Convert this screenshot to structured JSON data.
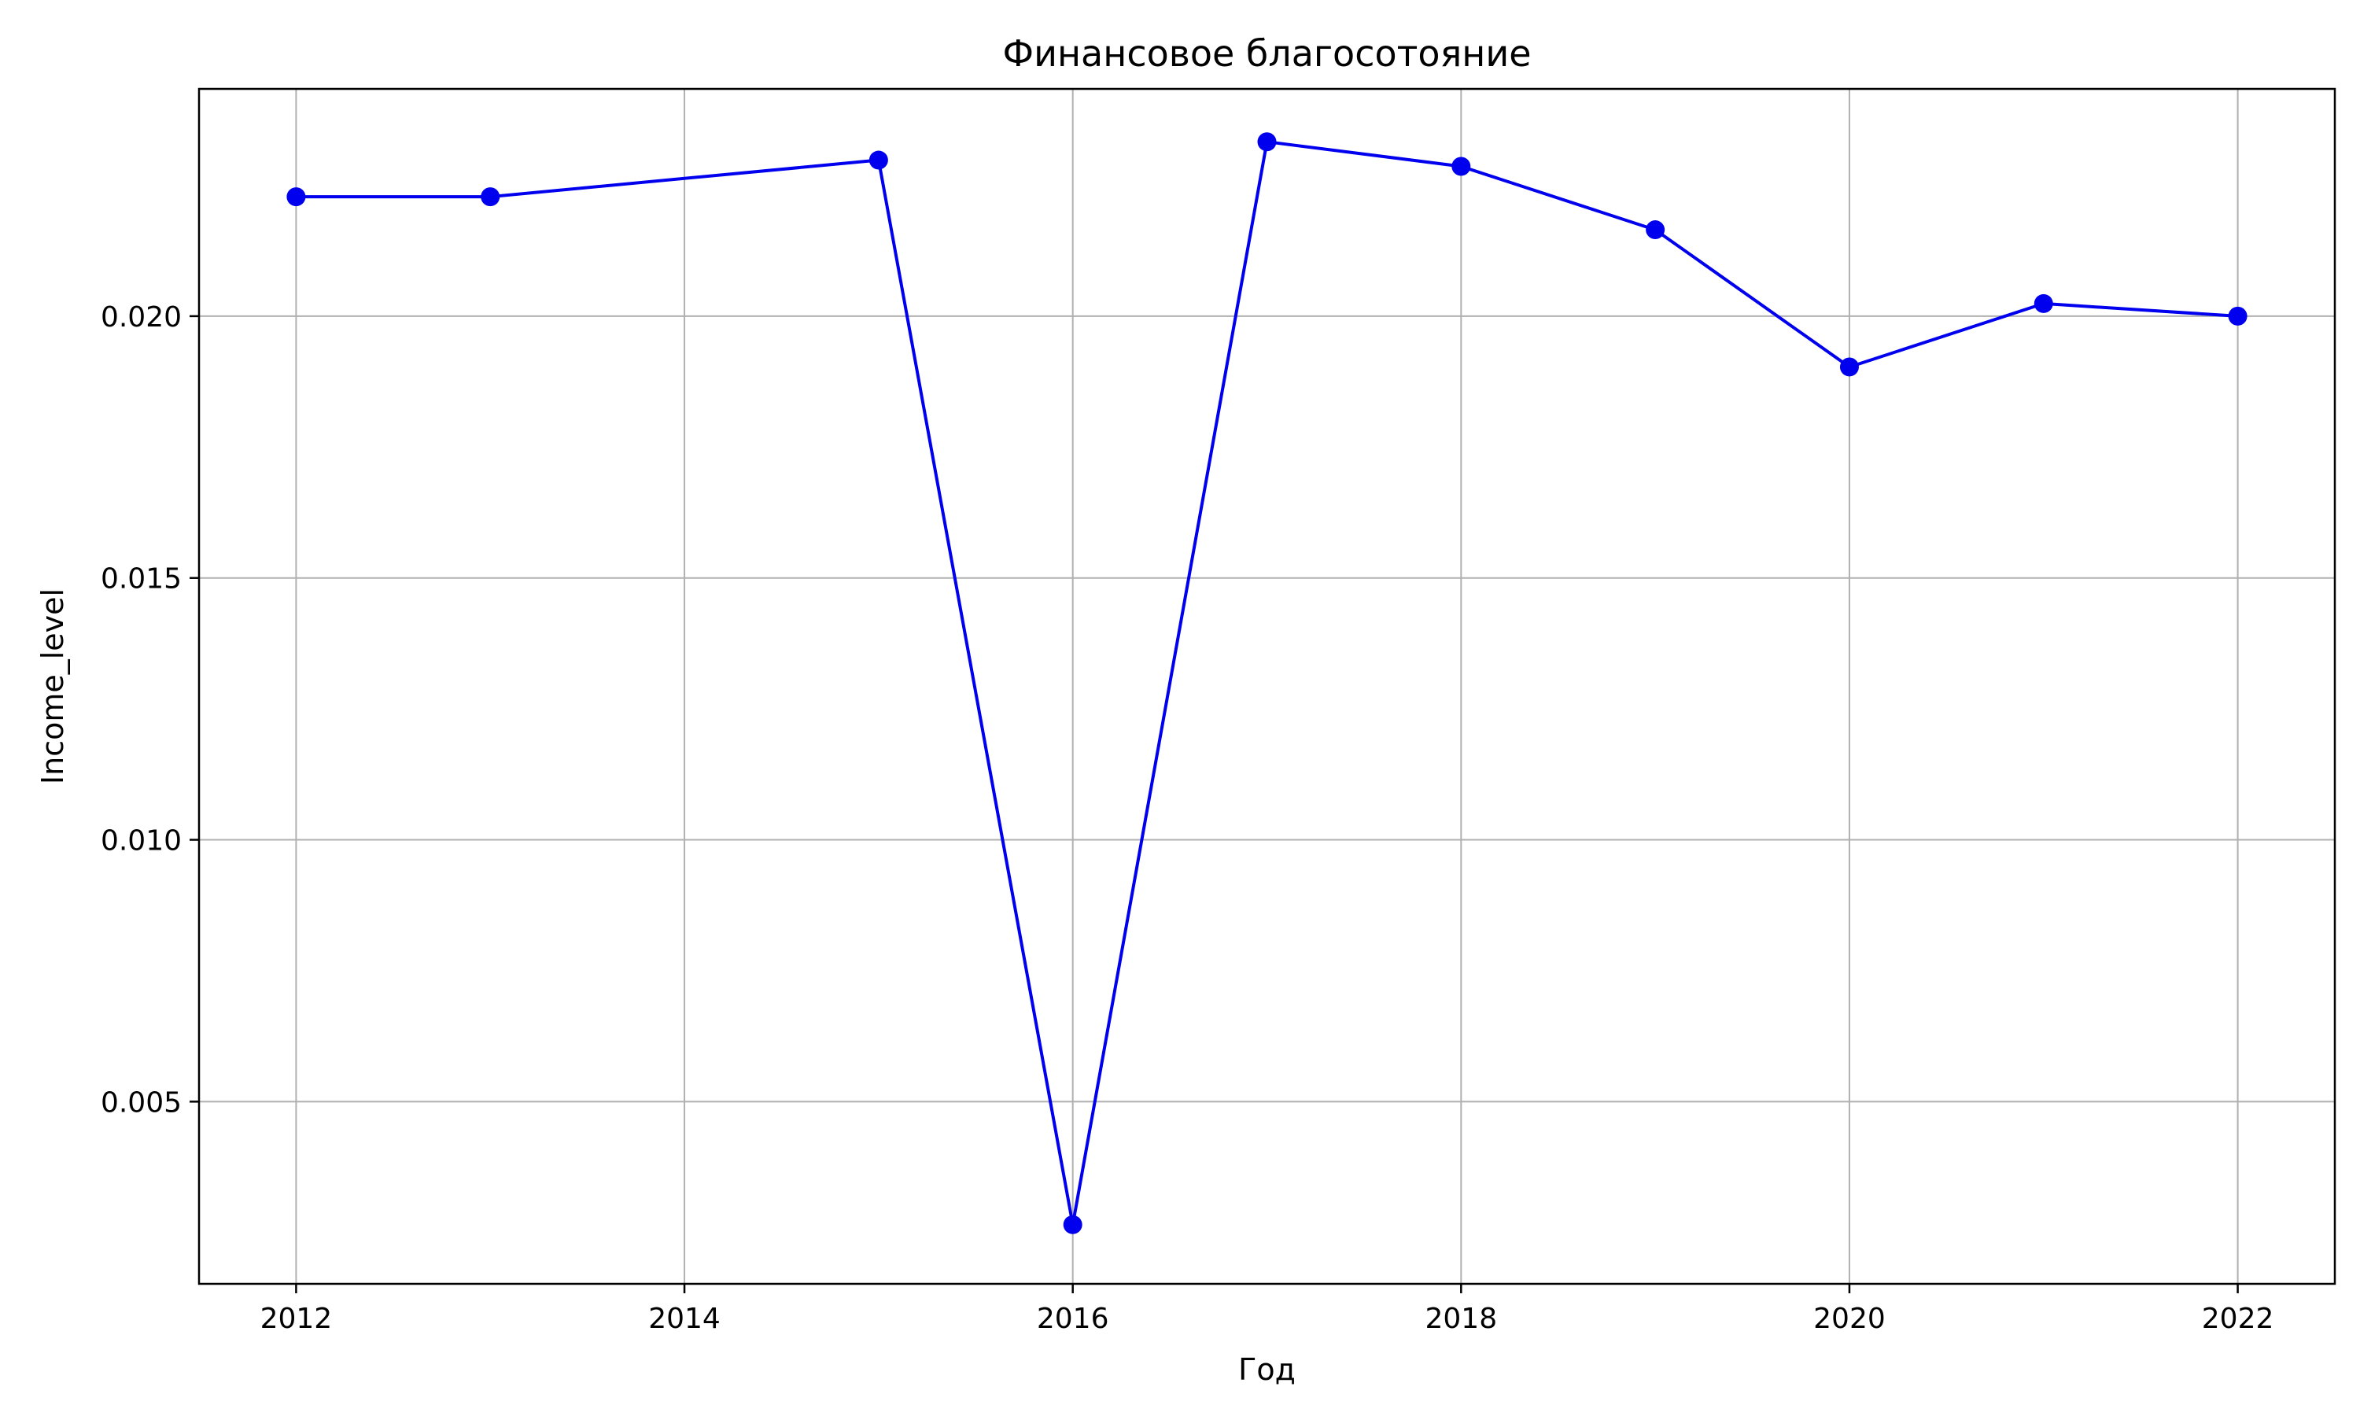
{
  "chart_data": {
    "type": "line",
    "title": "Финансовое благосотояние",
    "xlabel": "Год",
    "ylabel": "Income_level",
    "x": [
      2012,
      2013,
      2015,
      2016,
      2017,
      2018,
      2019,
      2020,
      2021,
      2022
    ],
    "series": [
      {
        "name": "",
        "values": [
          0.02228,
          0.02228,
          0.02298,
          0.00265,
          0.02333,
          0.02286,
          0.02165,
          0.01903,
          0.02024,
          0.02
        ],
        "color": "#0000ee",
        "marker": "circle"
      }
    ],
    "xlim": [
      2011.5,
      2022.5
    ],
    "ylim": [
      0.00152,
      0.02434
    ],
    "xticks": [
      2012,
      2014,
      2016,
      2018,
      2020,
      2022
    ],
    "xtick_labels": [
      "2012",
      "2014",
      "2016",
      "2018",
      "2020",
      "2022"
    ],
    "yticks": [
      0.005,
      0.01,
      0.015,
      0.02
    ],
    "ytick_labels": [
      "0.005",
      "0.010",
      "0.015",
      "0.020"
    ],
    "grid": true,
    "grid_color": "#b0b0b0",
    "axis_color": "#000000"
  }
}
